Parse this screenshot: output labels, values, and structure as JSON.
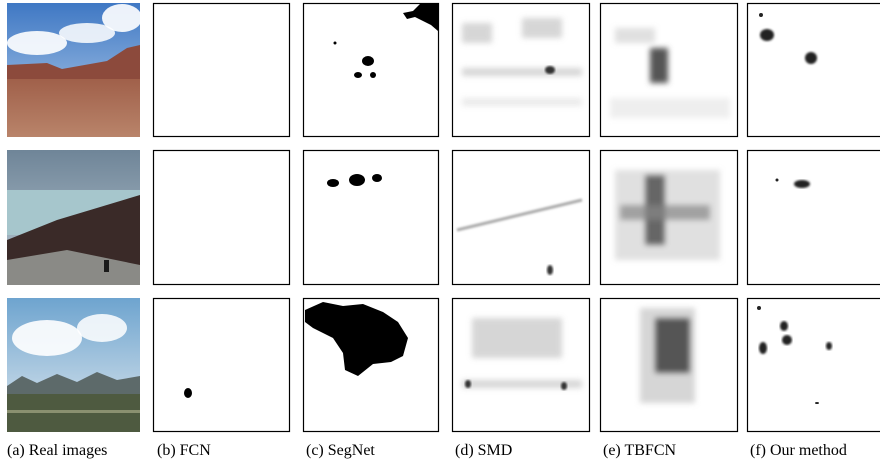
{
  "captions": [
    "(a) Real images",
    "(b) FCN",
    "(c) SegNet",
    "(d) SMD",
    "(e) TBFCN",
    "(f) Our method"
  ]
}
